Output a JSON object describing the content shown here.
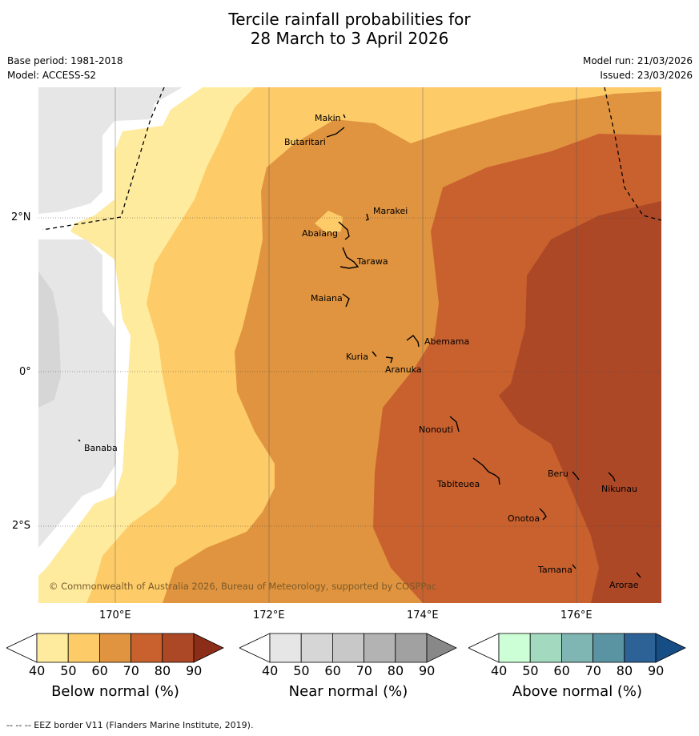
{
  "title_line1": "Tercile rainfall probabilities for",
  "title_line2": "28 March to 3 April 2026",
  "meta": {
    "base_period": "Base period: 1981-2018",
    "model": "Model: ACCESS-S2",
    "model_run": "Model run: 21/03/2026",
    "issued": "Issued: 23/03/2026"
  },
  "map": {
    "lon_ticks": [
      "170°E",
      "172°E",
      "174°E",
      "176°E"
    ],
    "lat_ticks": [
      "2°N",
      "0°",
      "2°S"
    ],
    "copyright": "© Commonwealth of Australia 2026, Bureau of Meteorology, supported by COSPPac",
    "islands": [
      {
        "name": "Makin",
        "lat": 3.3,
        "lon": 173.1
      },
      {
        "name": "Butaritari",
        "lat": 3.1,
        "lon": 172.9
      },
      {
        "name": "Marakei",
        "lat": 2.0,
        "lon": 173.3
      },
      {
        "name": "Abaiang",
        "lat": 1.8,
        "lon": 173.0
      },
      {
        "name": "Tarawa",
        "lat": 1.4,
        "lon": 173.0
      },
      {
        "name": "Maiana",
        "lat": 0.9,
        "lon": 173.0
      },
      {
        "name": "Abemama",
        "lat": 0.4,
        "lon": 173.9
      },
      {
        "name": "Kuria",
        "lat": 0.2,
        "lon": 173.4
      },
      {
        "name": "Aranuka",
        "lat": 0.2,
        "lon": 173.6
      },
      {
        "name": "Banaba",
        "lat": -0.9,
        "lon": 169.5
      },
      {
        "name": "Nonouti",
        "lat": -0.7,
        "lon": 174.4
      },
      {
        "name": "Tabiteuea",
        "lat": -1.3,
        "lon": 174.9
      },
      {
        "name": "Beru",
        "lat": -1.3,
        "lon": 176.0
      },
      {
        "name": "Nikunau",
        "lat": -1.4,
        "lon": 176.5
      },
      {
        "name": "Onotoa",
        "lat": -1.8,
        "lon": 175.6
      },
      {
        "name": "Tamana",
        "lat": -2.5,
        "lon": 175.9
      },
      {
        "name": "Arorae",
        "lat": -2.6,
        "lon": 176.8
      }
    ]
  },
  "colorbars": [
    {
      "label": "Below normal (%)",
      "ticks": [
        "40",
        "50",
        "60",
        "70",
        "80",
        "90"
      ],
      "colors": [
        "#ffffff",
        "#ffeb9e",
        "#fdcb67",
        "#e0943f",
        "#c9612f",
        "#ad4827",
        "#8c2e17"
      ]
    },
    {
      "label": "Near normal (%)",
      "ticks": [
        "40",
        "50",
        "60",
        "70",
        "80",
        "90"
      ],
      "colors": [
        "#ffffff",
        "#e6e6e6",
        "#d6d6d6",
        "#c8c8c8",
        "#b3b3b3",
        "#a1a1a1",
        "#888888"
      ]
    },
    {
      "label": "Above normal (%)",
      "ticks": [
        "40",
        "50",
        "60",
        "70",
        "80",
        "90"
      ],
      "colors": [
        "#ffffff",
        "#ccffd6",
        "#a3d9bf",
        "#7fb5b2",
        "#5a94a2",
        "#2d6297",
        "#154d84"
      ]
    }
  ],
  "footer": "--  --  -- EEZ border V11 (Flanders Marine Institute, 2019)."
}
